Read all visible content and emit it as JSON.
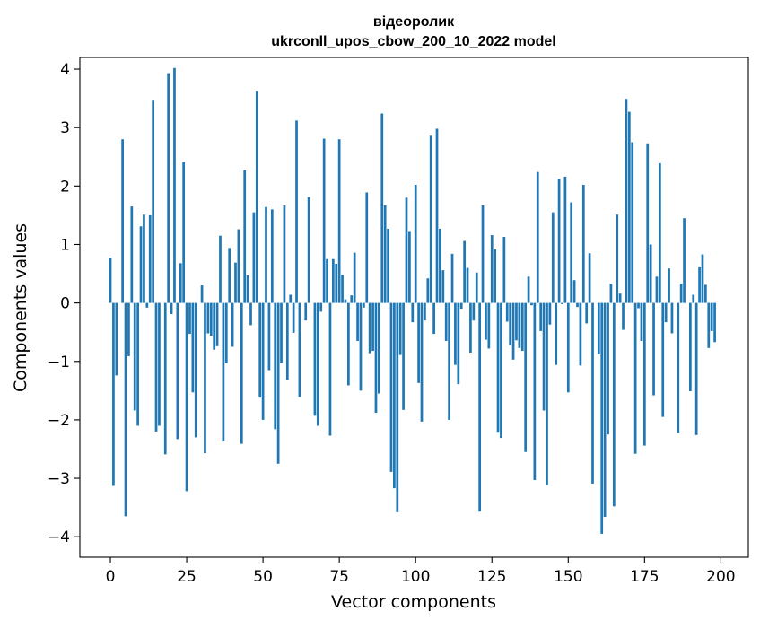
{
  "chart_data": {
    "type": "bar",
    "title_line1": "відеоролик",
    "title_line2": "ukrconll_upos_cbow_200_10_2022 model",
    "xlabel": "Vector components",
    "ylabel": "Components values",
    "xlim": [
      -10,
      209
    ],
    "ylim": [
      -4.35,
      4.2
    ],
    "xticks": [
      0,
      25,
      50,
      75,
      100,
      125,
      150,
      175,
      200
    ],
    "yticks": [
      -4,
      -3,
      -2,
      -1,
      0,
      1,
      2,
      3,
      4
    ],
    "ytick_labels": [
      "−4",
      "−3",
      "−2",
      "−1",
      "0",
      "1",
      "2",
      "3",
      "4"
    ],
    "bar_color": "#1f77b4",
    "values": [
      0.77,
      -3.13,
      -1.24,
      0.0,
      2.8,
      -3.65,
      -0.91,
      1.65,
      -1.84,
      -2.1,
      1.31,
      1.51,
      -0.08,
      1.5,
      3.46,
      -2.2,
      -2.1,
      0.0,
      -2.59,
      3.93,
      -0.19,
      4.02,
      -2.33,
      0.68,
      2.41,
      -3.22,
      -0.53,
      -1.53,
      -2.3,
      0.0,
      0.3,
      -2.57,
      -0.52,
      -0.56,
      -0.8,
      -0.74,
      1.15,
      -2.37,
      -1.03,
      0.94,
      -0.75,
      0.69,
      1.26,
      -2.41,
      2.27,
      0.47,
      -0.38,
      1.55,
      3.63,
      -1.62,
      -2.0,
      1.64,
      -1.15,
      1.6,
      -2.16,
      -2.75,
      -1.03,
      1.67,
      -1.32,
      0.14,
      -0.51,
      3.12,
      -1.61,
      0.0,
      -0.3,
      1.81,
      0.0,
      -1.93,
      -2.1,
      -0.15,
      2.81,
      0.75,
      -2.27,
      0.75,
      0.67,
      2.8,
      0.48,
      0.06,
      -1.41,
      0.13,
      0.86,
      -0.65,
      -1.5,
      -0.08,
      1.89,
      -0.86,
      -0.82,
      -1.88,
      -1.55,
      3.24,
      1.67,
      1.27,
      -2.89,
      -3.17,
      -3.58,
      -0.89,
      -1.83,
      1.8,
      1.23,
      -0.33,
      2.02,
      -1.37,
      -2.03,
      -0.3,
      0.42,
      2.86,
      -0.53,
      2.98,
      1.27,
      0.56,
      -0.65,
      -2.0,
      0.84,
      -1.06,
      -1.39,
      -0.1,
      1.06,
      0.6,
      -0.85,
      -0.3,
      0.52,
      -3.57,
      1.67,
      -0.63,
      -0.78,
      1.16,
      0.92,
      -2.22,
      -2.31,
      1.13,
      -0.32,
      -0.72,
      -0.97,
      -0.64,
      -0.77,
      -0.82,
      -2.55,
      0.45,
      -0.04,
      -3.03,
      2.24,
      -0.48,
      -1.84,
      -3.12,
      -0.37,
      1.55,
      -1.06,
      2.12,
      -0.02,
      2.16,
      -1.53,
      1.72,
      0.39,
      -0.07,
      -1.07,
      2.02,
      -0.35,
      0.85,
      -3.09,
      0.0,
      -0.88,
      -3.95,
      -3.66,
      -2.25,
      0.33,
      -3.48,
      1.51,
      0.16,
      -0.46,
      3.49,
      3.27,
      2.75,
      -2.58,
      -0.09,
      -0.65,
      -2.44,
      2.73,
      1.0,
      -1.58,
      0.45,
      2.39,
      -1.95,
      -0.33,
      0.59,
      -0.52,
      0.0,
      -2.23,
      0.33,
      1.45,
      0.0,
      -1.51,
      0.14,
      -2.26,
      0.61,
      0.83,
      0.31,
      -0.77,
      -0.48,
      -0.67,
      0.0
    ]
  }
}
